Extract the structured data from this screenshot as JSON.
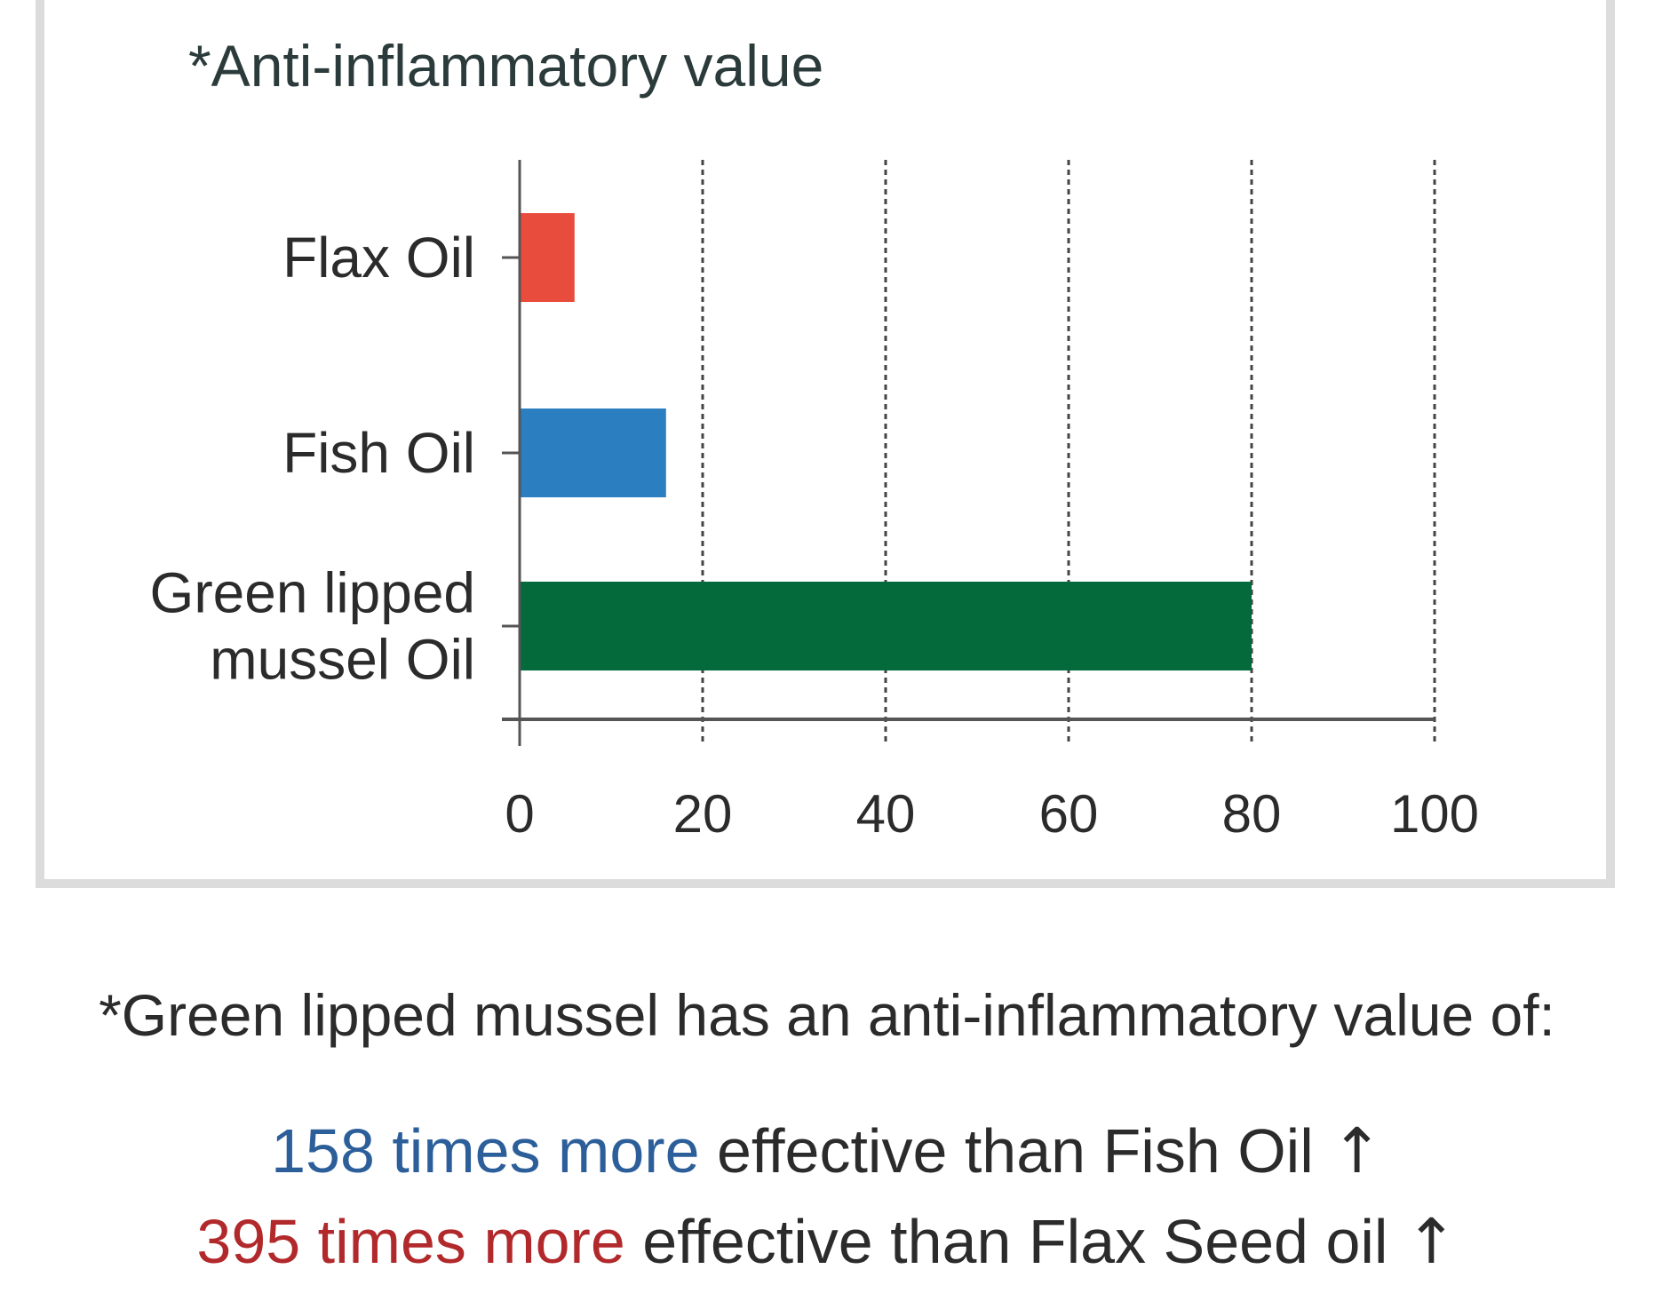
{
  "colors": {
    "flax": "#e84c3d",
    "fish": "#2b7fc0",
    "mussel": "#046a3c",
    "claim_fish": "#2c5f9a",
    "claim_flax": "#b2292c",
    "axis": "#555555",
    "grid": "#444444"
  },
  "chart_data": {
    "type": "bar",
    "orientation": "horizontal",
    "title": "*Anti-inflammatory value",
    "categories": [
      "Flax Oil",
      "Fish Oil",
      "Green lipped mussel Oil"
    ],
    "category_lines": [
      [
        "Flax Oil"
      ],
      [
        "Fish Oil"
      ],
      [
        "Green lipped",
        "mussel Oil"
      ]
    ],
    "values": [
      6,
      16,
      80
    ],
    "xlim": [
      0,
      100
    ],
    "xticks": [
      0,
      20,
      40,
      60,
      80,
      100
    ],
    "grid": "vertical dashed",
    "legend": "none"
  },
  "footnote": "*Green lipped mussel has an anti-inflammatory value of:",
  "claims": [
    {
      "highlight": "158 times more",
      "rest": " effective than Fish Oil ",
      "arrow": "↑",
      "color_key": "claim_fish"
    },
    {
      "highlight": "395 times more",
      "rest": " effective than Flax Seed oil ",
      "arrow": "↑",
      "color_key": "claim_flax"
    }
  ]
}
